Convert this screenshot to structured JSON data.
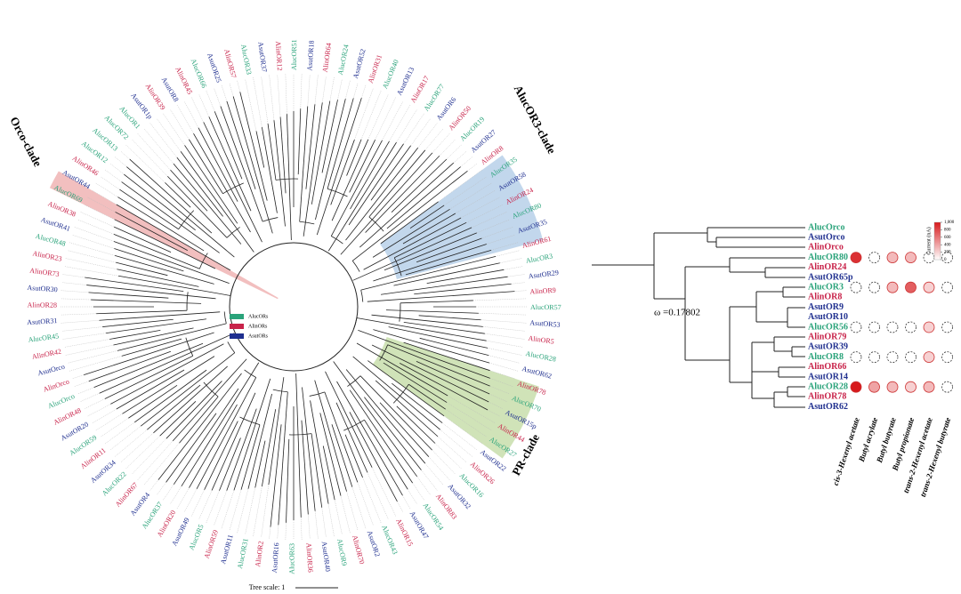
{
  "circular_tree": {
    "clades": [
      {
        "label": "Orco-clade",
        "color": "#e88a8a"
      },
      {
        "label": "AlucOR3-clade",
        "color": "#8fb6dc"
      },
      {
        "label": "PR-clade",
        "color": "#a9cc7e"
      }
    ],
    "legend": [
      {
        "label": "AlucORs",
        "color": "#2aa37a"
      },
      {
        "label": "AlinORs",
        "color": "#c8234a"
      },
      {
        "label": "AsutORs",
        "color": "#1f2f8f"
      }
    ],
    "tree_scale": "Tree scale: 1",
    "leaves": [
      {
        "label": "AsutOR30",
        "color": "#1f2f8f"
      },
      {
        "label": "AlinOR73",
        "color": "#c8234a"
      },
      {
        "label": "AlinOR23",
        "color": "#c8234a"
      },
      {
        "label": "AlucOR48",
        "color": "#2aa37a"
      },
      {
        "label": "AsutOR41",
        "color": "#1f2f8f"
      },
      {
        "label": "AlinOR38",
        "color": "#c8234a"
      },
      {
        "label": "AlucOR69",
        "color": "#2aa37a"
      },
      {
        "label": "AsutOR44",
        "color": "#1f2f8f"
      },
      {
        "label": "AlinOR46",
        "color": "#c8234a"
      },
      {
        "label": "AlucOR12",
        "color": "#2aa37a"
      },
      {
        "label": "AlucOR13",
        "color": "#2aa37a"
      },
      {
        "label": "AlucOR72",
        "color": "#2aa37a"
      },
      {
        "label": "AlucOR1",
        "color": "#2aa37a"
      },
      {
        "label": "AsutOR1p",
        "color": "#1f2f8f"
      },
      {
        "label": "AlinOR39",
        "color": "#c8234a"
      },
      {
        "label": "AsutOR8",
        "color": "#1f2f8f"
      },
      {
        "label": "AlinOR45",
        "color": "#c8234a"
      },
      {
        "label": "AlucOR66",
        "color": "#2aa37a"
      },
      {
        "label": "AsutOR25",
        "color": "#1f2f8f"
      },
      {
        "label": "AlinOR57",
        "color": "#c8234a"
      },
      {
        "label": "AlucOR33",
        "color": "#2aa37a"
      },
      {
        "label": "AsutOR37",
        "color": "#1f2f8f"
      },
      {
        "label": "AlinOR12",
        "color": "#c8234a"
      },
      {
        "label": "AlucOR51",
        "color": "#2aa37a"
      },
      {
        "label": "AsutOR18",
        "color": "#1f2f8f"
      },
      {
        "label": "AlinOR64",
        "color": "#c8234a"
      },
      {
        "label": "AlucOR24",
        "color": "#2aa37a"
      },
      {
        "label": "AsutOR52",
        "color": "#1f2f8f"
      },
      {
        "label": "AlinOR31",
        "color": "#c8234a"
      },
      {
        "label": "AlucOR40",
        "color": "#2aa37a"
      },
      {
        "label": "AsutOR13",
        "color": "#1f2f8f"
      },
      {
        "label": "AlinOR17",
        "color": "#c8234a"
      },
      {
        "label": "AlucOR77",
        "color": "#2aa37a"
      },
      {
        "label": "AsutOR6",
        "color": "#1f2f8f"
      },
      {
        "label": "AlinOR50",
        "color": "#c8234a"
      },
      {
        "label": "AlucOR19",
        "color": "#2aa37a"
      },
      {
        "label": "AsutOR27",
        "color": "#1f2f8f"
      },
      {
        "label": "AlinOR8",
        "color": "#c8234a"
      },
      {
        "label": "AlucOR35",
        "color": "#2aa37a"
      },
      {
        "label": "AsutOR58",
        "color": "#1f2f8f"
      },
      {
        "label": "AlinOR24",
        "color": "#c8234a"
      },
      {
        "label": "AlucOR80",
        "color": "#2aa37a"
      },
      {
        "label": "AsutOR35",
        "color": "#1f2f8f"
      },
      {
        "label": "AlinOR61",
        "color": "#c8234a"
      },
      {
        "label": "AlucOR3",
        "color": "#2aa37a"
      },
      {
        "label": "AsutOR29",
        "color": "#1f2f8f"
      },
      {
        "label": "AlinOR9",
        "color": "#c8234a"
      },
      {
        "label": "AlucOR57",
        "color": "#2aa37a"
      },
      {
        "label": "AsutOR53",
        "color": "#1f2f8f"
      },
      {
        "label": "AlinOR5",
        "color": "#c8234a"
      },
      {
        "label": "AlucOR28",
        "color": "#2aa37a"
      },
      {
        "label": "AsutOR62",
        "color": "#1f2f8f"
      },
      {
        "label": "AlinOR78",
        "color": "#c8234a"
      },
      {
        "label": "AlucOR70",
        "color": "#2aa37a"
      },
      {
        "label": "AsutOR15p",
        "color": "#1f2f8f"
      },
      {
        "label": "AlinOR44",
        "color": "#c8234a"
      },
      {
        "label": "AlucOR27",
        "color": "#2aa37a"
      },
      {
        "label": "AsutOR22",
        "color": "#1f2f8f"
      },
      {
        "label": "AlinOR26",
        "color": "#c8234a"
      },
      {
        "label": "AlucOR16",
        "color": "#2aa37a"
      },
      {
        "label": "AsutOR32",
        "color": "#1f2f8f"
      },
      {
        "label": "AlinOR83",
        "color": "#c8234a"
      },
      {
        "label": "AlucOR54",
        "color": "#2aa37a"
      },
      {
        "label": "AsutOR47",
        "color": "#1f2f8f"
      },
      {
        "label": "AlinOR15",
        "color": "#c8234a"
      },
      {
        "label": "AlucOR43",
        "color": "#2aa37a"
      },
      {
        "label": "AsutOR2",
        "color": "#1f2f8f"
      },
      {
        "label": "AlinOR70",
        "color": "#c8234a"
      },
      {
        "label": "AlucOR9",
        "color": "#2aa37a"
      },
      {
        "label": "AsutOR40",
        "color": "#1f2f8f"
      },
      {
        "label": "AlinOR36",
        "color": "#c8234a"
      },
      {
        "label": "AlucOR63",
        "color": "#2aa37a"
      },
      {
        "label": "AsutOR16",
        "color": "#1f2f8f"
      },
      {
        "label": "AlinOR2",
        "color": "#c8234a"
      },
      {
        "label": "AlucOR31",
        "color": "#2aa37a"
      },
      {
        "label": "AsutOR11",
        "color": "#1f2f8f"
      },
      {
        "label": "AlinOR59",
        "color": "#c8234a"
      },
      {
        "label": "AlucOR5",
        "color": "#2aa37a"
      },
      {
        "label": "AsutOR49",
        "color": "#1f2f8f"
      },
      {
        "label": "AlinOR20",
        "color": "#c8234a"
      },
      {
        "label": "AlucOR37",
        "color": "#2aa37a"
      },
      {
        "label": "AsutOR4",
        "color": "#1f2f8f"
      },
      {
        "label": "AlinOR67",
        "color": "#c8234a"
      },
      {
        "label": "AlucOR22",
        "color": "#2aa37a"
      },
      {
        "label": "AsutOR34",
        "color": "#1f2f8f"
      },
      {
        "label": "AlinOR11",
        "color": "#c8234a"
      },
      {
        "label": "AlucOR59",
        "color": "#2aa37a"
      },
      {
        "label": "AsutOR20",
        "color": "#1f2f8f"
      },
      {
        "label": "AlinOR48",
        "color": "#c8234a"
      },
      {
        "label": "AlucOrco",
        "color": "#2aa37a"
      },
      {
        "label": "AlinOrco",
        "color": "#c8234a"
      },
      {
        "label": "AsutOrco",
        "color": "#1f2f8f"
      },
      {
        "label": "AlinOR42",
        "color": "#c8234a"
      },
      {
        "label": "AlucOR45",
        "color": "#2aa37a"
      },
      {
        "label": "AsutOR31",
        "color": "#1f2f8f"
      },
      {
        "label": "AlinOR28",
        "color": "#c8234a"
      }
    ]
  },
  "small_tree": {
    "omega": "ω =0.17802",
    "compounds": [
      "cis-3-Hexenyl acetate",
      "Butyl acrylate",
      "Butyl butyrate",
      "Butyl propionate",
      "trans-2-Hexenyl acetate",
      "trans-2-Hexenyl butyrate"
    ],
    "colorbar": {
      "label": "Current (nA)",
      "ticks": [
        {
          "value": 1000,
          "label": "1,000"
        },
        800,
        600,
        400,
        200,
        0
      ],
      "colors": [
        "#ffffff",
        "#d7191c"
      ]
    },
    "leaves": [
      {
        "label": "AlucOrco",
        "color": "#2aa37a"
      },
      {
        "label": "AsutOrco",
        "color": "#1f2f8f"
      },
      {
        "label": "AlinOrco",
        "color": "#c8234a"
      },
      {
        "label": "AlucOR80",
        "color": "#2aa37a",
        "responses": [
          900,
          0,
          300,
          300,
          0,
          0
        ]
      },
      {
        "label": "AlinOR24",
        "color": "#c8234a"
      },
      {
        "label": "AsutOR65p",
        "color": "#1f2f8f"
      },
      {
        "label": "AlucOR3",
        "color": "#2aa37a",
        "responses": [
          0,
          0,
          300,
          700,
          200,
          0
        ]
      },
      {
        "label": "AlinOR8",
        "color": "#c8234a"
      },
      {
        "label": "AsutOR9",
        "color": "#1f2f8f"
      },
      {
        "label": "AsutOR10",
        "color": "#1f2f8f"
      },
      {
        "label": "AlucOR56",
        "color": "#2aa37a",
        "responses": [
          0,
          0,
          0,
          0,
          200,
          0
        ]
      },
      {
        "label": "AlinOR79",
        "color": "#c8234a"
      },
      {
        "label": "AsutOR39",
        "color": "#1f2f8f"
      },
      {
        "label": "AlucOR8",
        "color": "#2aa37a",
        "responses": [
          0,
          0,
          0,
          0,
          200,
          0
        ]
      },
      {
        "label": "AlinOR66",
        "color": "#c8234a"
      },
      {
        "label": "AsutOR14",
        "color": "#1f2f8f"
      },
      {
        "label": "AlucOR28",
        "color": "#2aa37a",
        "responses": [
          1000,
          400,
          300,
          200,
          300,
          0
        ]
      },
      {
        "label": "AlinOR78",
        "color": "#c8234a"
      },
      {
        "label": "AsutOR62",
        "color": "#1f2f8f"
      }
    ]
  }
}
